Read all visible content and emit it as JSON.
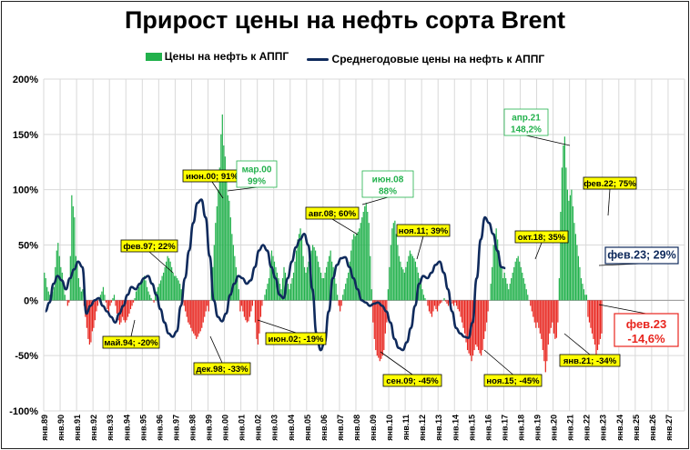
{
  "chart_data": {
    "type": "bar+line",
    "title": "Прирост цены на нефть сорта Brent",
    "legend": [
      "Цены на нефть к АППГ",
      "Среднегодовые цены на нефть к АППГ"
    ],
    "ylim": [
      -100,
      200
    ],
    "yticks": [
      "200%",
      "150%",
      "100%",
      "50%",
      "0%",
      "-50%",
      "-100%"
    ],
    "xticks": [
      "янв.89",
      "янв.90",
      "янв.91",
      "янв.92",
      "янв.93",
      "янв.94",
      "янв.95",
      "янв.96",
      "янв.97",
      "янв.98",
      "янв.99",
      "янв.00",
      "янв.01",
      "янв.02",
      "янв.03",
      "янв.04",
      "янв.05",
      "янв.06",
      "янв.07",
      "янв.08",
      "янв.09",
      "янв.10",
      "янв.11",
      "янв.12",
      "янв.13",
      "янв.14",
      "янв.15",
      "янв.16",
      "янв.17",
      "янв.18",
      "янв.19",
      "янв.20",
      "янв.21",
      "янв.22",
      "янв.23",
      "янв.24",
      "янв.25",
      "янв.26",
      "янв.27"
    ],
    "bar_series": {
      "name": "Цены на нефть к АППГ",
      "values_by_year": [
        [
          25,
          20,
          12,
          8,
          5,
          3,
          8,
          12,
          30,
          45,
          52,
          40
        ],
        [
          30,
          25,
          15,
          5,
          0,
          -5,
          -2,
          40,
          95,
          85,
          75,
          40
        ],
        [
          35,
          20,
          12,
          8,
          10,
          -5,
          -15,
          -25,
          -35,
          -40,
          -38,
          -28
        ],
        [
          -25,
          -18,
          -10,
          -5,
          2,
          5,
          8,
          12,
          5,
          -2,
          -8,
          -12
        ],
        [
          -5,
          -2,
          2,
          5,
          -5,
          -12,
          -18,
          -22,
          -20,
          -15,
          -18,
          -20
        ],
        [
          -18,
          -15,
          -12,
          -8,
          -5,
          -2,
          2,
          8,
          10,
          12,
          15,
          18
        ],
        [
          20,
          22,
          18,
          12,
          8,
          5,
          2,
          0,
          -2,
          5,
          8,
          12
        ],
        [
          15,
          18,
          22,
          25,
          30,
          35,
          40,
          38,
          35,
          30,
          25,
          22
        ],
        [
          22,
          20,
          18,
          15,
          10,
          5,
          -5,
          -10,
          -15,
          -20,
          -22,
          -25
        ],
        [
          -28,
          -30,
          -32,
          -35,
          -33,
          -30,
          -28,
          -25,
          -20,
          -15,
          -10,
          -5
        ],
        [
          -10,
          0,
          15,
          30,
          50,
          70,
          85,
          100,
          120,
          150,
          168,
          140
        ],
        [
          130,
          110,
          95,
          90,
          75,
          60,
          50,
          40,
          30,
          20,
          10,
          -10
        ],
        [
          -5,
          -10,
          -15,
          -18,
          -20,
          -19,
          -15,
          -10,
          -5,
          0,
          -20,
          -35
        ],
        [
          -40,
          -30,
          -15,
          -5,
          0,
          5,
          10,
          15,
          20,
          35,
          45,
          40
        ],
        [
          35,
          30,
          25,
          20,
          15,
          10,
          20,
          30,
          25,
          20,
          15,
          10
        ],
        [
          15,
          20,
          25,
          35,
          45,
          55,
          60,
          65,
          55,
          40,
          30,
          25
        ],
        [
          30,
          35,
          40,
          45,
          50,
          48,
          45,
          40,
          35,
          30,
          25,
          20
        ],
        [
          20,
          25,
          30,
          35,
          40,
          45,
          35,
          30,
          20,
          15,
          5,
          -5
        ],
        [
          -10,
          -5,
          5,
          10,
          15,
          20,
          25,
          35,
          45,
          55,
          60,
          58
        ],
        [
          60,
          62,
          65,
          70,
          75,
          80,
          85,
          88,
          80,
          70,
          40,
          10
        ],
        [
          -20,
          -35,
          -45,
          -50,
          -52,
          -55,
          -53,
          -50,
          -45,
          -30,
          -20,
          10
        ],
        [
          30,
          50,
          65,
          70,
          72,
          60,
          50,
          40,
          35,
          30,
          28,
          25
        ],
        [
          30,
          35,
          40,
          45,
          42,
          40,
          38,
          35,
          30,
          25,
          20,
          15
        ],
        [
          10,
          5,
          2,
          0,
          -5,
          -10,
          -12,
          -15,
          -10,
          -5,
          -8,
          -10
        ],
        [
          -5,
          -3,
          -2,
          0,
          2,
          -1,
          -3,
          -5,
          -2,
          0,
          -3,
          -5
        ],
        [
          -2,
          -5,
          -8,
          -10,
          -15,
          -20,
          -25,
          -30,
          -38,
          -45,
          -48,
          -50
        ],
        [
          -55,
          -50,
          -45,
          -40,
          -42,
          -45,
          -48,
          -50,
          -45,
          -35,
          -28,
          -20
        ],
        [
          -10,
          0,
          15,
          30,
          50,
          60,
          65,
          55,
          45,
          35,
          30,
          20
        ],
        [
          25,
          20,
          15,
          10,
          15,
          20,
          25,
          30,
          35,
          38,
          40,
          35
        ],
        [
          30,
          25,
          20,
          15,
          10,
          5,
          0,
          -5,
          -10,
          -15,
          -20,
          -25
        ],
        [
          -20,
          -25,
          -30,
          -35,
          -45,
          -55,
          -65,
          -55,
          -40,
          -30,
          -25,
          -20
        ],
        [
          -30,
          -35,
          -34,
          -20,
          20,
          80,
          120,
          140,
          148,
          120,
          100,
          90
        ],
        [
          95,
          100,
          85,
          70,
          60,
          50,
          40,
          30,
          20,
          15,
          10,
          5
        ],
        [
          5,
          -15,
          -20,
          -25,
          -30,
          -35,
          -40,
          -50,
          -45,
          -40,
          -35,
          -30
        ]
      ]
    },
    "line_series": {
      "name": "Среднегодовые цены на нефть к АППГ",
      "points": [
        [
          0,
          -10
        ],
        [
          0.5,
          -2
        ],
        [
          1,
          15
        ],
        [
          1.5,
          22
        ],
        [
          2,
          18
        ],
        [
          2.5,
          10
        ],
        [
          3,
          20
        ],
        [
          3.5,
          28
        ],
        [
          4,
          35
        ],
        [
          4.5,
          30
        ],
        [
          5,
          -12
        ],
        [
          5.5,
          -5
        ],
        [
          6,
          0
        ],
        [
          6.5,
          2
        ],
        [
          7,
          -5
        ],
        [
          7.5,
          -10
        ],
        [
          8,
          -15
        ],
        [
          8.5,
          -20
        ],
        [
          9,
          -12
        ],
        [
          9.5,
          -5
        ],
        [
          10,
          5
        ],
        [
          10.5,
          12
        ],
        [
          11,
          10
        ],
        [
          11.5,
          15
        ],
        [
          12,
          20
        ],
        [
          12.5,
          22
        ],
        [
          13,
          15
        ],
        [
          13.5,
          5
        ],
        [
          14,
          -8
        ],
        [
          14.5,
          -20
        ],
        [
          15,
          -30
        ],
        [
          15.5,
          -33
        ],
        [
          16,
          -28
        ],
        [
          16.5,
          -5
        ],
        [
          17,
          20
        ],
        [
          17.5,
          45
        ],
        [
          18,
          70
        ],
        [
          18.5,
          88
        ],
        [
          19,
          91
        ],
        [
          19.5,
          75
        ],
        [
          20,
          40
        ],
        [
          20.5,
          0
        ],
        [
          21,
          -15
        ],
        [
          21.5,
          -19
        ],
        [
          22,
          -12
        ],
        [
          22.5,
          5
        ],
        [
          23,
          15
        ],
        [
          23.5,
          22
        ],
        [
          24,
          20
        ],
        [
          24.5,
          15
        ],
        [
          25,
          18
        ],
        [
          25.5,
          30
        ],
        [
          26,
          45
        ],
        [
          26.5,
          50
        ],
        [
          27,
          45
        ],
        [
          27.5,
          30
        ],
        [
          28,
          20
        ],
        [
          28.5,
          5
        ],
        [
          29,
          2
        ],
        [
          29.5,
          20
        ],
        [
          30,
          35
        ],
        [
          30.5,
          48
        ],
        [
          31,
          55
        ],
        [
          31.5,
          60
        ],
        [
          32,
          50
        ],
        [
          32.5,
          10
        ],
        [
          33,
          -30
        ],
        [
          33.5,
          -45
        ],
        [
          34,
          -38
        ],
        [
          34.5,
          -10
        ],
        [
          35,
          20
        ],
        [
          35.5,
          32
        ],
        [
          36,
          38
        ],
        [
          36.5,
          39
        ],
        [
          37,
          30
        ],
        [
          37.5,
          20
        ],
        [
          38,
          10
        ],
        [
          38.5,
          0
        ],
        [
          39,
          -2
        ],
        [
          39.5,
          -5
        ],
        [
          40,
          -3
        ],
        [
          40.5,
          -2
        ],
        [
          41,
          -5
        ],
        [
          41.5,
          -10
        ],
        [
          42,
          -20
        ],
        [
          42.5,
          -35
        ],
        [
          43,
          -43
        ],
        [
          43.5,
          -45
        ],
        [
          44,
          -38
        ],
        [
          44.5,
          -25
        ],
        [
          45,
          -5
        ],
        [
          45.5,
          15
        ],
        [
          46,
          22
        ],
        [
          46.5,
          20
        ],
        [
          47,
          25
        ],
        [
          47.5,
          32
        ],
        [
          48,
          35
        ],
        [
          48.5,
          25
        ],
        [
          49,
          10
        ],
        [
          49.5,
          -10
        ],
        [
          50,
          -25
        ],
        [
          50.5,
          -30
        ],
        [
          51,
          -33
        ],
        [
          51.5,
          -34
        ],
        [
          52,
          -20
        ],
        [
          52.5,
          20
        ],
        [
          53,
          55
        ],
        [
          53.5,
          75
        ],
        [
          54,
          70
        ],
        [
          54.5,
          60
        ],
        [
          55,
          45
        ],
        [
          55.5,
          30
        ],
        [
          56,
          29
        ]
      ]
    },
    "annotations": [
      {
        "text": "май.94; -20%"
      },
      {
        "text": "фев.97; 22%"
      },
      {
        "text": "дек.98; -33%"
      },
      {
        "text": "июн.00; 91%"
      },
      {
        "text": "мар.00"
      },
      {
        "text": "99%"
      },
      {
        "text": "июн.02; -19%"
      },
      {
        "text": "авг.08; 60%"
      },
      {
        "text": "июн.08"
      },
      {
        "text": "88%"
      },
      {
        "text": "ноя.11; 39%"
      },
      {
        "text": "сен.09; -45%"
      },
      {
        "text": "ноя.15; -45%"
      },
      {
        "text": "окт.18; 35%"
      },
      {
        "text": "апр.21"
      },
      {
        "text": "148,2%"
      },
      {
        "text": "фев.22; 75%"
      },
      {
        "text": "янв.21; -34%"
      },
      {
        "text": "фев.23; 29%"
      },
      {
        "text": "фев.23"
      },
      {
        "text": "-14,6%"
      }
    ],
    "colors": {
      "positive": "#22b14c",
      "negative": "#e8261f",
      "line": "#0f2a5c",
      "callout_bg": "#ffff00",
      "green_text": "#22b14c",
      "red_text": "#e8261f",
      "grid": "#d9d9d9"
    }
  }
}
